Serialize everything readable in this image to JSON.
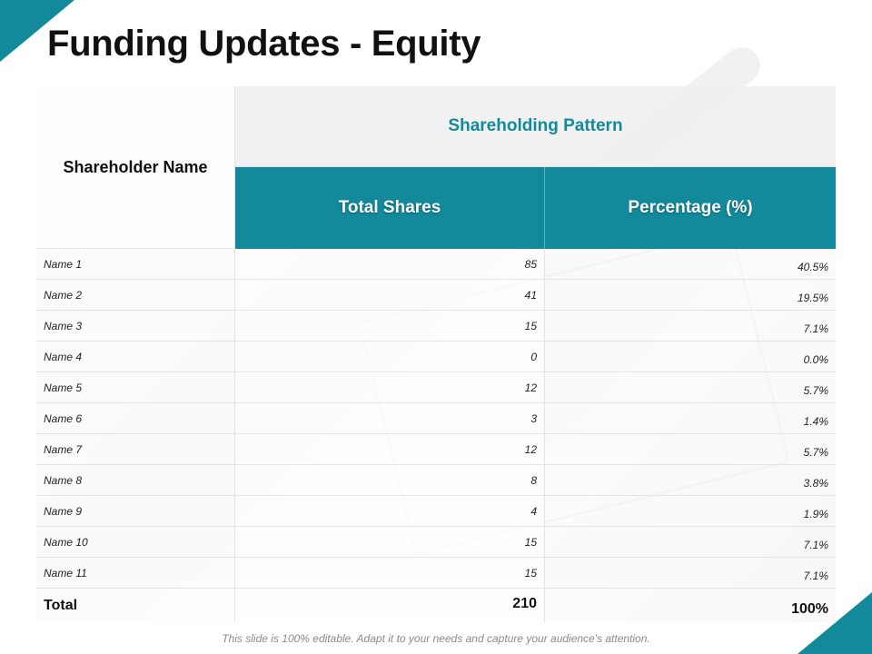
{
  "title": "Funding Updates - Equity",
  "colors": {
    "accent": "#138a9c"
  },
  "table": {
    "header_name": "Shareholder Name",
    "header_group": "Shareholding Pattern",
    "header_shares": "Total Shares",
    "header_pct": "Percentage (%)",
    "rows": [
      {
        "name": "Name 1",
        "shares": "85",
        "pct": "40.5%"
      },
      {
        "name": "Name 2",
        "shares": "41",
        "pct": "19.5%"
      },
      {
        "name": "Name 3",
        "shares": "15",
        "pct": "7.1%"
      },
      {
        "name": "Name 4",
        "shares": "0",
        "pct": "0.0%"
      },
      {
        "name": "Name 5",
        "shares": "12",
        "pct": "5.7%"
      },
      {
        "name": "Name 6",
        "shares": "3",
        "pct": "1.4%"
      },
      {
        "name": "Name 7",
        "shares": "12",
        "pct": "5.7%"
      },
      {
        "name": "Name 8",
        "shares": "8",
        "pct": "3.8%"
      },
      {
        "name": "Name 9",
        "shares": "4",
        "pct": "1.9%"
      },
      {
        "name": "Name 10",
        "shares": "15",
        "pct": "7.1%"
      },
      {
        "name": "Name 11",
        "shares": "15",
        "pct": "7.1%"
      }
    ],
    "total": {
      "name": "Total",
      "shares": "210",
      "pct": "100%"
    }
  },
  "footer": "This slide is 100% editable. Adapt it to your needs and capture your audience's attention."
}
